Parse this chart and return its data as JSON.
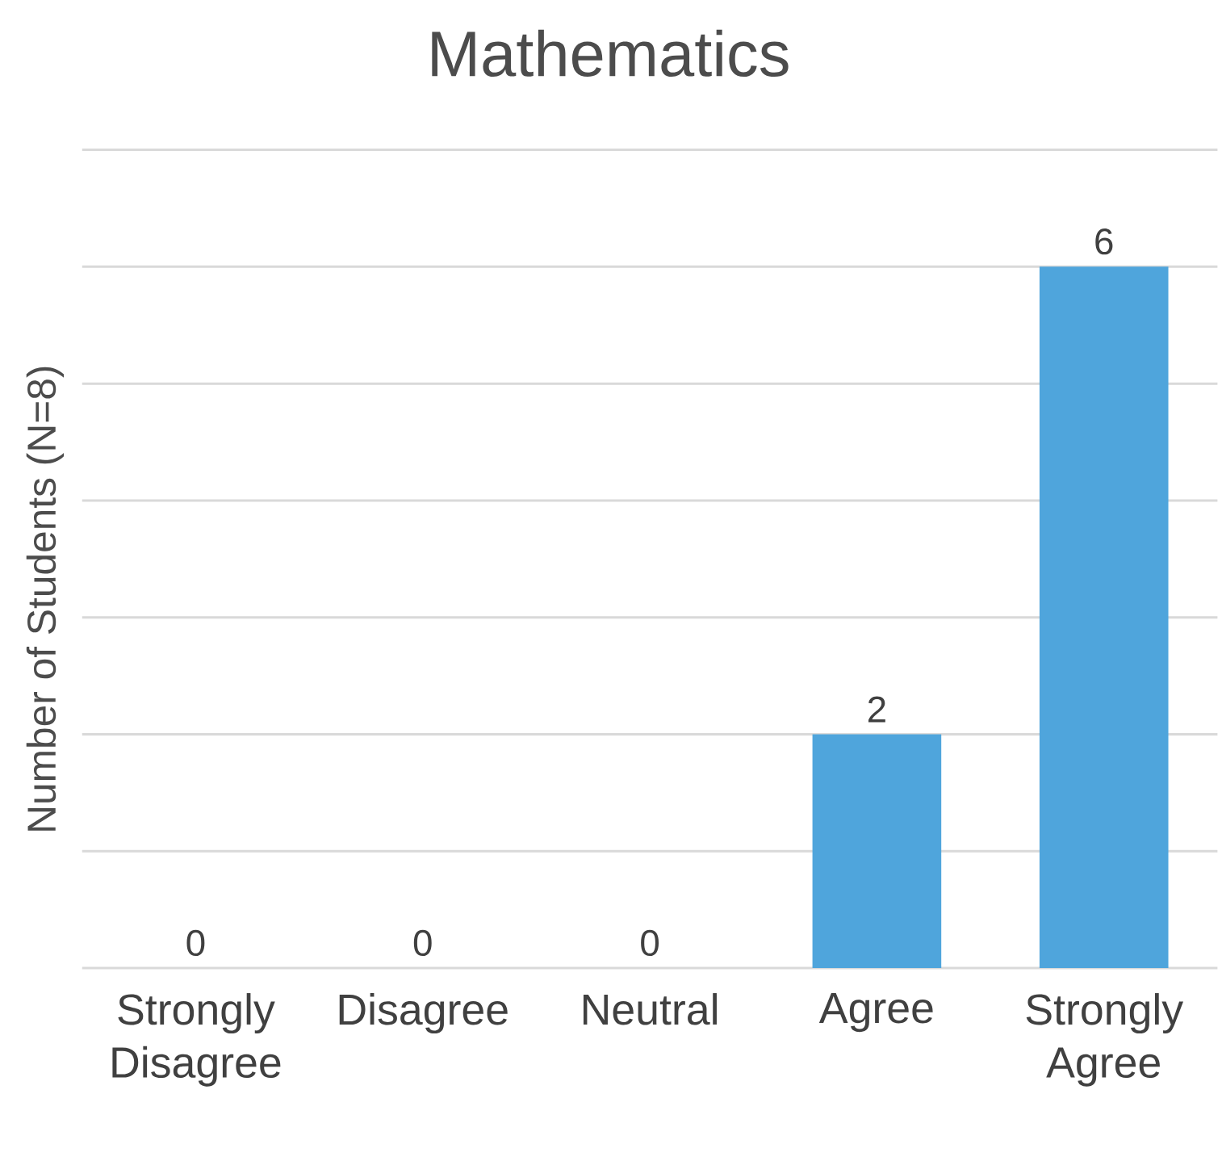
{
  "chart_data": {
    "type": "bar",
    "title": "Mathematics",
    "ylabel": "Number of Students (N=8)",
    "categories": [
      "Strongly Disagree",
      "Disagree",
      "Neutral",
      "Agree",
      "Strongly Agree"
    ],
    "values": [
      0,
      0,
      0,
      2,
      6
    ],
    "color": "#4fa5dc",
    "data_labels": true,
    "ylim": [
      0,
      7
    ],
    "yticks": [
      {
        "value": 0,
        "label": null
      },
      {
        "value": 1,
        "label": null
      },
      {
        "value": 2,
        "label": null
      },
      {
        "value": 3,
        "label": null
      },
      {
        "value": 4,
        "label": null
      },
      {
        "value": 5,
        "label": null
      },
      {
        "value": 6,
        "label": null
      },
      {
        "value": 7,
        "label": null
      }
    ],
    "grid": "y",
    "tick_labels": "x"
  }
}
